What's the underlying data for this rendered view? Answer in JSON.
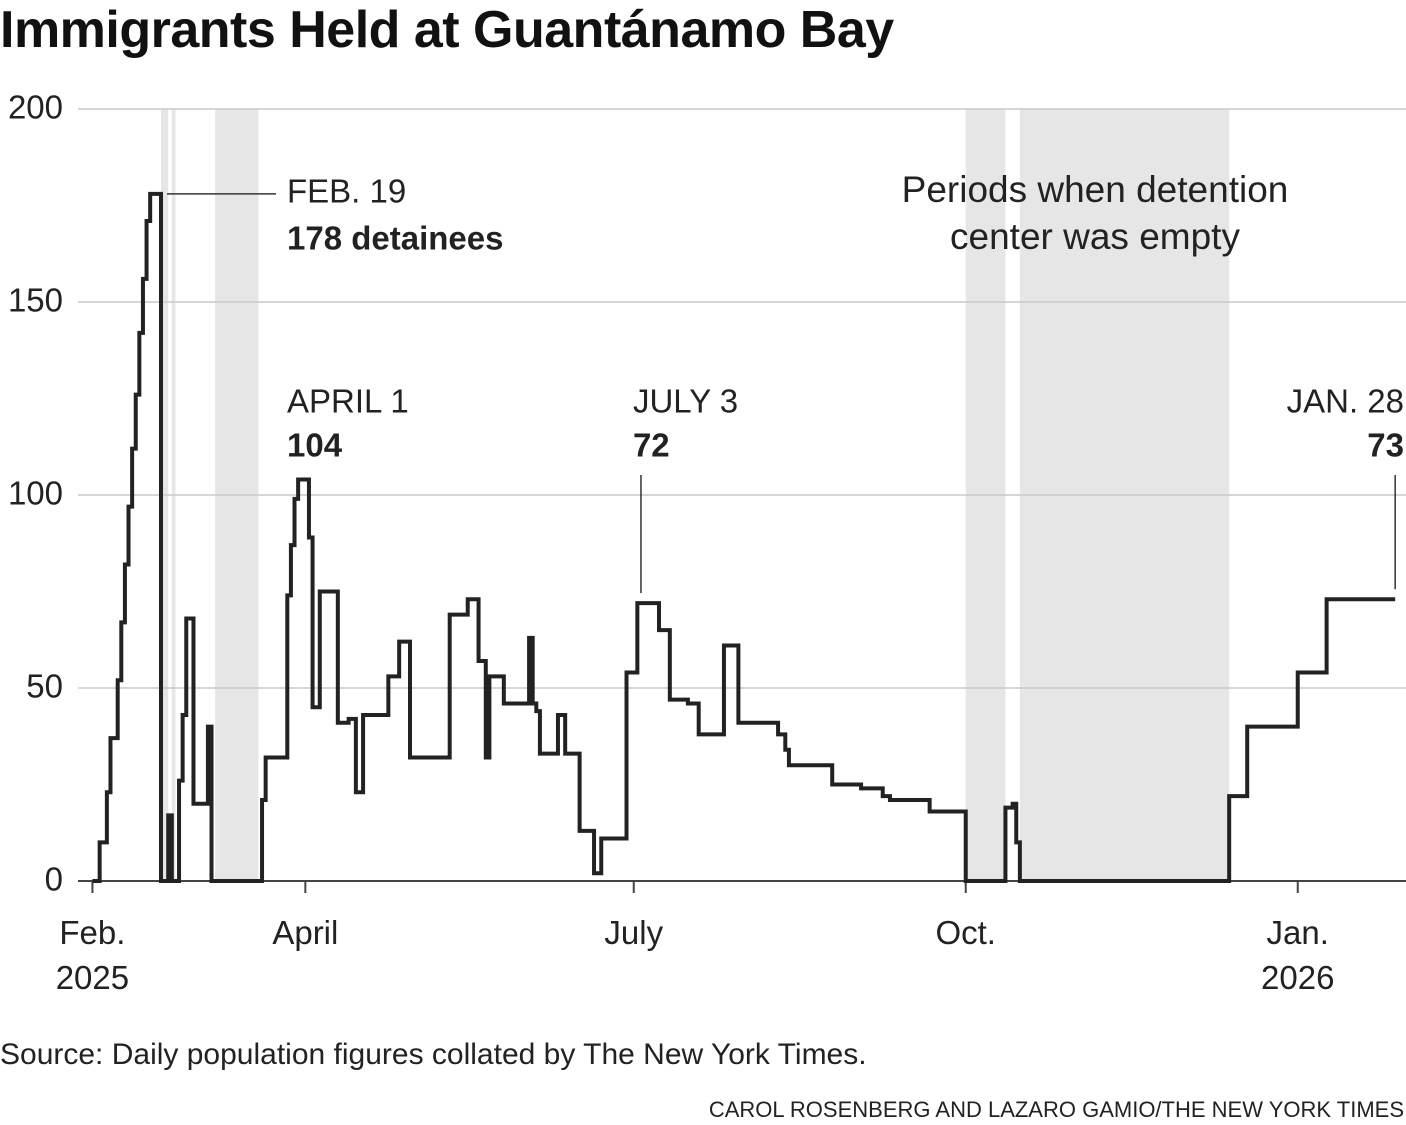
{
  "title": "Immigrants Held at Guantánamo Bay",
  "chart_data": {
    "type": "line",
    "step": "post",
    "color": "#222222",
    "x": [
      0,
      2,
      4,
      5,
      7,
      8,
      9,
      10,
      11,
      12,
      13,
      14,
      15,
      16,
      19,
      21,
      22,
      24,
      25,
      26,
      28,
      32,
      33,
      47,
      48,
      54,
      55,
      56,
      57,
      60,
      61,
      63,
      68,
      71,
      73,
      75,
      82,
      85,
      88,
      99,
      104,
      107,
      109,
      110,
      114,
      121,
      122,
      123,
      124,
      129,
      131,
      135,
      139,
      141,
      148,
      151,
      157,
      160,
      165,
      168,
      175,
      179,
      190,
      192,
      193,
      205,
      213,
      219,
      221,
      232,
      242,
      253,
      255,
      256,
      257,
      315,
      320,
      334,
      342,
      361
    ],
    "values": [
      0,
      10,
      23,
      37,
      52,
      67,
      82,
      97,
      112,
      126,
      142,
      156,
      171,
      178,
      0,
      17,
      0,
      26,
      43,
      68,
      20,
      40,
      0,
      21,
      32,
      74,
      87,
      99,
      104,
      89,
      45,
      75,
      41,
      42,
      23,
      43,
      53,
      62,
      32,
      69,
      73,
      57,
      32,
      53,
      46,
      63,
      46,
      44,
      33,
      43,
      33,
      13,
      2,
      11,
      54,
      72,
      65,
      47,
      46,
      38,
      61,
      41,
      38,
      34,
      30,
      25,
      24,
      22,
      21,
      18,
      0,
      19,
      20,
      10,
      0,
      22,
      40,
      54,
      73,
      73
    ],
    "xlim": [
      -4,
      364
    ],
    "xticks": [
      {
        "value": 0,
        "label": "Feb. 2025"
      },
      {
        "value": 59,
        "label": "April"
      },
      {
        "value": 150,
        "label": "July"
      },
      {
        "value": 242,
        "label": "Oct."
      },
      {
        "value": 334,
        "label": "Jan. 2026"
      }
    ],
    "ylim": [
      0,
      200
    ],
    "yticks": [
      0,
      50,
      100,
      150,
      200
    ],
    "grid": true,
    "shaded_periods": [
      [
        19,
        21
      ],
      [
        22,
        23
      ],
      [
        34,
        46
      ],
      [
        242,
        253
      ],
      [
        257,
        315
      ]
    ],
    "shaded_label": "Periods when detention center was empty",
    "annotations": [
      {
        "label": "FEB. 19",
        "text": "178 detainees",
        "x": 19,
        "value": 178
      },
      {
        "label": "APRIL 1",
        "text": "104",
        "x": 59,
        "value": 104
      },
      {
        "label": "JULY 3",
        "text": "72",
        "x": 152,
        "value": 72
      },
      {
        "label": "JAN. 28",
        "text": "73",
        "x": 361,
        "value": 73
      }
    ]
  },
  "source": "Source: Daily population figures collated by The New York Times.",
  "credit": "CAROL ROSENBERG AND LAZARO GAMIO/THE NEW YORK TIMES"
}
